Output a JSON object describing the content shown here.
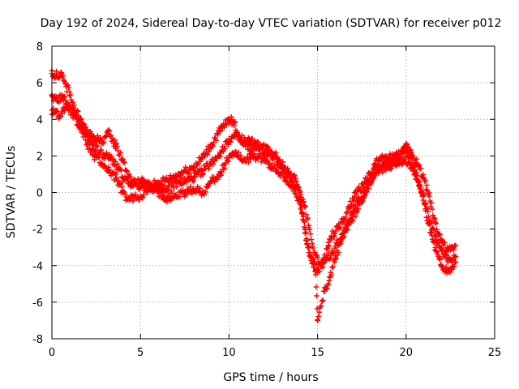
{
  "chart_data": {
    "type": "scatter",
    "title": "Day 192 of 2024, Sidereal Day-to-day VTEC variation (SDTVAR) for receiver p012",
    "xlabel": "GPS time / hours",
    "ylabel": "SDTVAR / TECUs",
    "xlim": [
      0,
      25
    ],
    "ylim": [
      -8,
      8
    ],
    "xticks": [
      0,
      5,
      10,
      15,
      20,
      25
    ],
    "yticks": [
      -8,
      -6,
      -4,
      -2,
      0,
      2,
      4,
      6,
      8
    ],
    "grid": true,
    "marker": "+",
    "series": [
      {
        "name": "SDTVAR p012",
        "color": "#ff0000",
        "tracks": [
          {
            "x": [
              0.0,
              0.3,
              0.5,
              0.8,
              1.0,
              1.3,
              1.6,
              2.0,
              2.4,
              2.8,
              3.2,
              3.6,
              4.0,
              4.2,
              4.5,
              5.0,
              5.5,
              6.0,
              6.5,
              7.0,
              7.5,
              8.0,
              8.5,
              9.0,
              9.5,
              10.0,
              10.3,
              10.6,
              11.0,
              11.4,
              11.8,
              12.2,
              12.6,
              13.0,
              13.4,
              13.8,
              14.0,
              14.2,
              14.4,
              14.6,
              14.8,
              15.0,
              15.2,
              15.4,
              15.6,
              15.9,
              16.2,
              16.5,
              16.8,
              17.1,
              17.4,
              17.7,
              18.0,
              18.3,
              18.6,
              19.0,
              19.4,
              19.8,
              20.0,
              20.3,
              20.6,
              21.0,
              21.3,
              21.6,
              22.0,
              22.3,
              22.6,
              22.8
            ],
            "y": [
              6.5,
              6.4,
              6.5,
              5.8,
              5.5,
              4.5,
              4.0,
              3.2,
              3.0,
              2.8,
              3.2,
              2.6,
              1.8,
              1.2,
              0.5,
              0.6,
              0.4,
              0.5,
              0.7,
              0.9,
              1.2,
              1.4,
              1.9,
              2.6,
              3.4,
              4.0,
              3.8,
              3.0,
              2.8,
              2.7,
              2.5,
              2.4,
              2.1,
              1.5,
              1.0,
              0.6,
              -0.4,
              -1.5,
              -2.8,
              -3.5,
              -3.9,
              -4.2,
              -4.0,
              -3.6,
              -2.9,
              -2.2,
              -1.9,
              -1.5,
              -0.8,
              -0.2,
              0.2,
              0.6,
              1.0,
              1.6,
              1.8,
              1.9,
              2.0,
              2.2,
              2.5,
              2.2,
              1.6,
              0.8,
              -0.2,
              -1.5,
              -2.6,
              -3.2,
              -3.1,
              -2.9
            ]
          },
          {
            "x": [
              0.0,
              0.3,
              0.6,
              0.9,
              1.2,
              1.5,
              1.9,
              2.3,
              2.7,
              3.0,
              3.4,
              3.8,
              4.0,
              4.3,
              5.0,
              5.5,
              6.0,
              6.5,
              7.0,
              7.5,
              8.0,
              8.5,
              9.0,
              9.5,
              10.0,
              10.4,
              10.8,
              11.2,
              11.6,
              12.0,
              12.4,
              12.8,
              13.2,
              13.6,
              14.0,
              14.3,
              14.5,
              14.7,
              14.9,
              15.1,
              15.3,
              15.5,
              15.8,
              16.1,
              16.4,
              16.7,
              17.0,
              17.3,
              17.6,
              18.0,
              18.4,
              18.8,
              19.2,
              19.6,
              19.9,
              20.2,
              20.5,
              20.8,
              21.1,
              21.4,
              21.7,
              22.0,
              22.3,
              22.6,
              22.8
            ],
            "y": [
              5.3,
              5.0,
              5.3,
              4.8,
              4.4,
              4.0,
              3.4,
              2.6,
              2.2,
              2.0,
              1.8,
              1.3,
              0.8,
              0.5,
              0.3,
              0.2,
              0.4,
              0.2,
              0.5,
              0.6,
              0.8,
              1.2,
              1.6,
              2.2,
              2.9,
              3.1,
              2.6,
              2.4,
              2.6,
              2.2,
              2.0,
              1.6,
              1.2,
              0.6,
              0.0,
              -0.8,
              -1.8,
              -2.8,
              -3.4,
              -3.9,
              -3.9,
              -3.7,
              -3.3,
              -2.8,
              -2.3,
              -1.8,
              -1.0,
              -0.5,
              0.0,
              0.5,
              1.2,
              1.4,
              1.6,
              1.7,
              1.8,
              1.6,
              1.0,
              0.3,
              -0.6,
              -1.7,
              -2.6,
              -3.2,
              -3.6,
              -3.7,
              -3.5
            ]
          },
          {
            "x": [
              0.0,
              0.4,
              0.8,
              1.2,
              1.6,
              2.0,
              2.4,
              2.8,
              3.2,
              3.6,
              4.0,
              4.3,
              5.0,
              5.5,
              6.0,
              6.5,
              7.0,
              7.5,
              8.0,
              8.5,
              9.0,
              9.5,
              10.0,
              10.4,
              10.8,
              11.2,
              11.6,
              12.0,
              12.4,
              12.8,
              13.2,
              13.6,
              14.0,
              14.3,
              14.6,
              14.9,
              15.0,
              15.2,
              15.4,
              15.7,
              16.0,
              16.3,
              16.6,
              16.9,
              17.2,
              17.6,
              18.0,
              18.4,
              18.8,
              19.2,
              19.6,
              19.9,
              20.2,
              20.5,
              20.8,
              21.1,
              21.4,
              21.7,
              22.0,
              22.3,
              22.6,
              22.8
            ],
            "y": [
              4.5,
              4.2,
              4.8,
              4.3,
              3.6,
              2.6,
              2.0,
              1.6,
              1.2,
              0.8,
              0.0,
              -0.4,
              -0.2,
              0.2,
              0.0,
              -0.3,
              -0.2,
              0.0,
              0.2,
              0.0,
              0.6,
              1.0,
              2.0,
              2.2,
              1.8,
              1.9,
              2.0,
              1.8,
              1.4,
              1.1,
              0.8,
              0.3,
              -0.6,
              -2.0,
              -3.5,
              -4.5,
              -7.0,
              -6.2,
              -5.4,
              -4.6,
              -3.6,
              -2.8,
              -2.0,
              -1.5,
              -1.0,
              -0.2,
              0.6,
              1.4,
              1.6,
              1.5,
              1.9,
              2.4,
              2.0,
              1.2,
              0.2,
              -1.0,
              -2.2,
              -3.2,
              -4.0,
              -4.3,
              -4.1,
              -3.8
            ]
          }
        ]
      }
    ]
  }
}
